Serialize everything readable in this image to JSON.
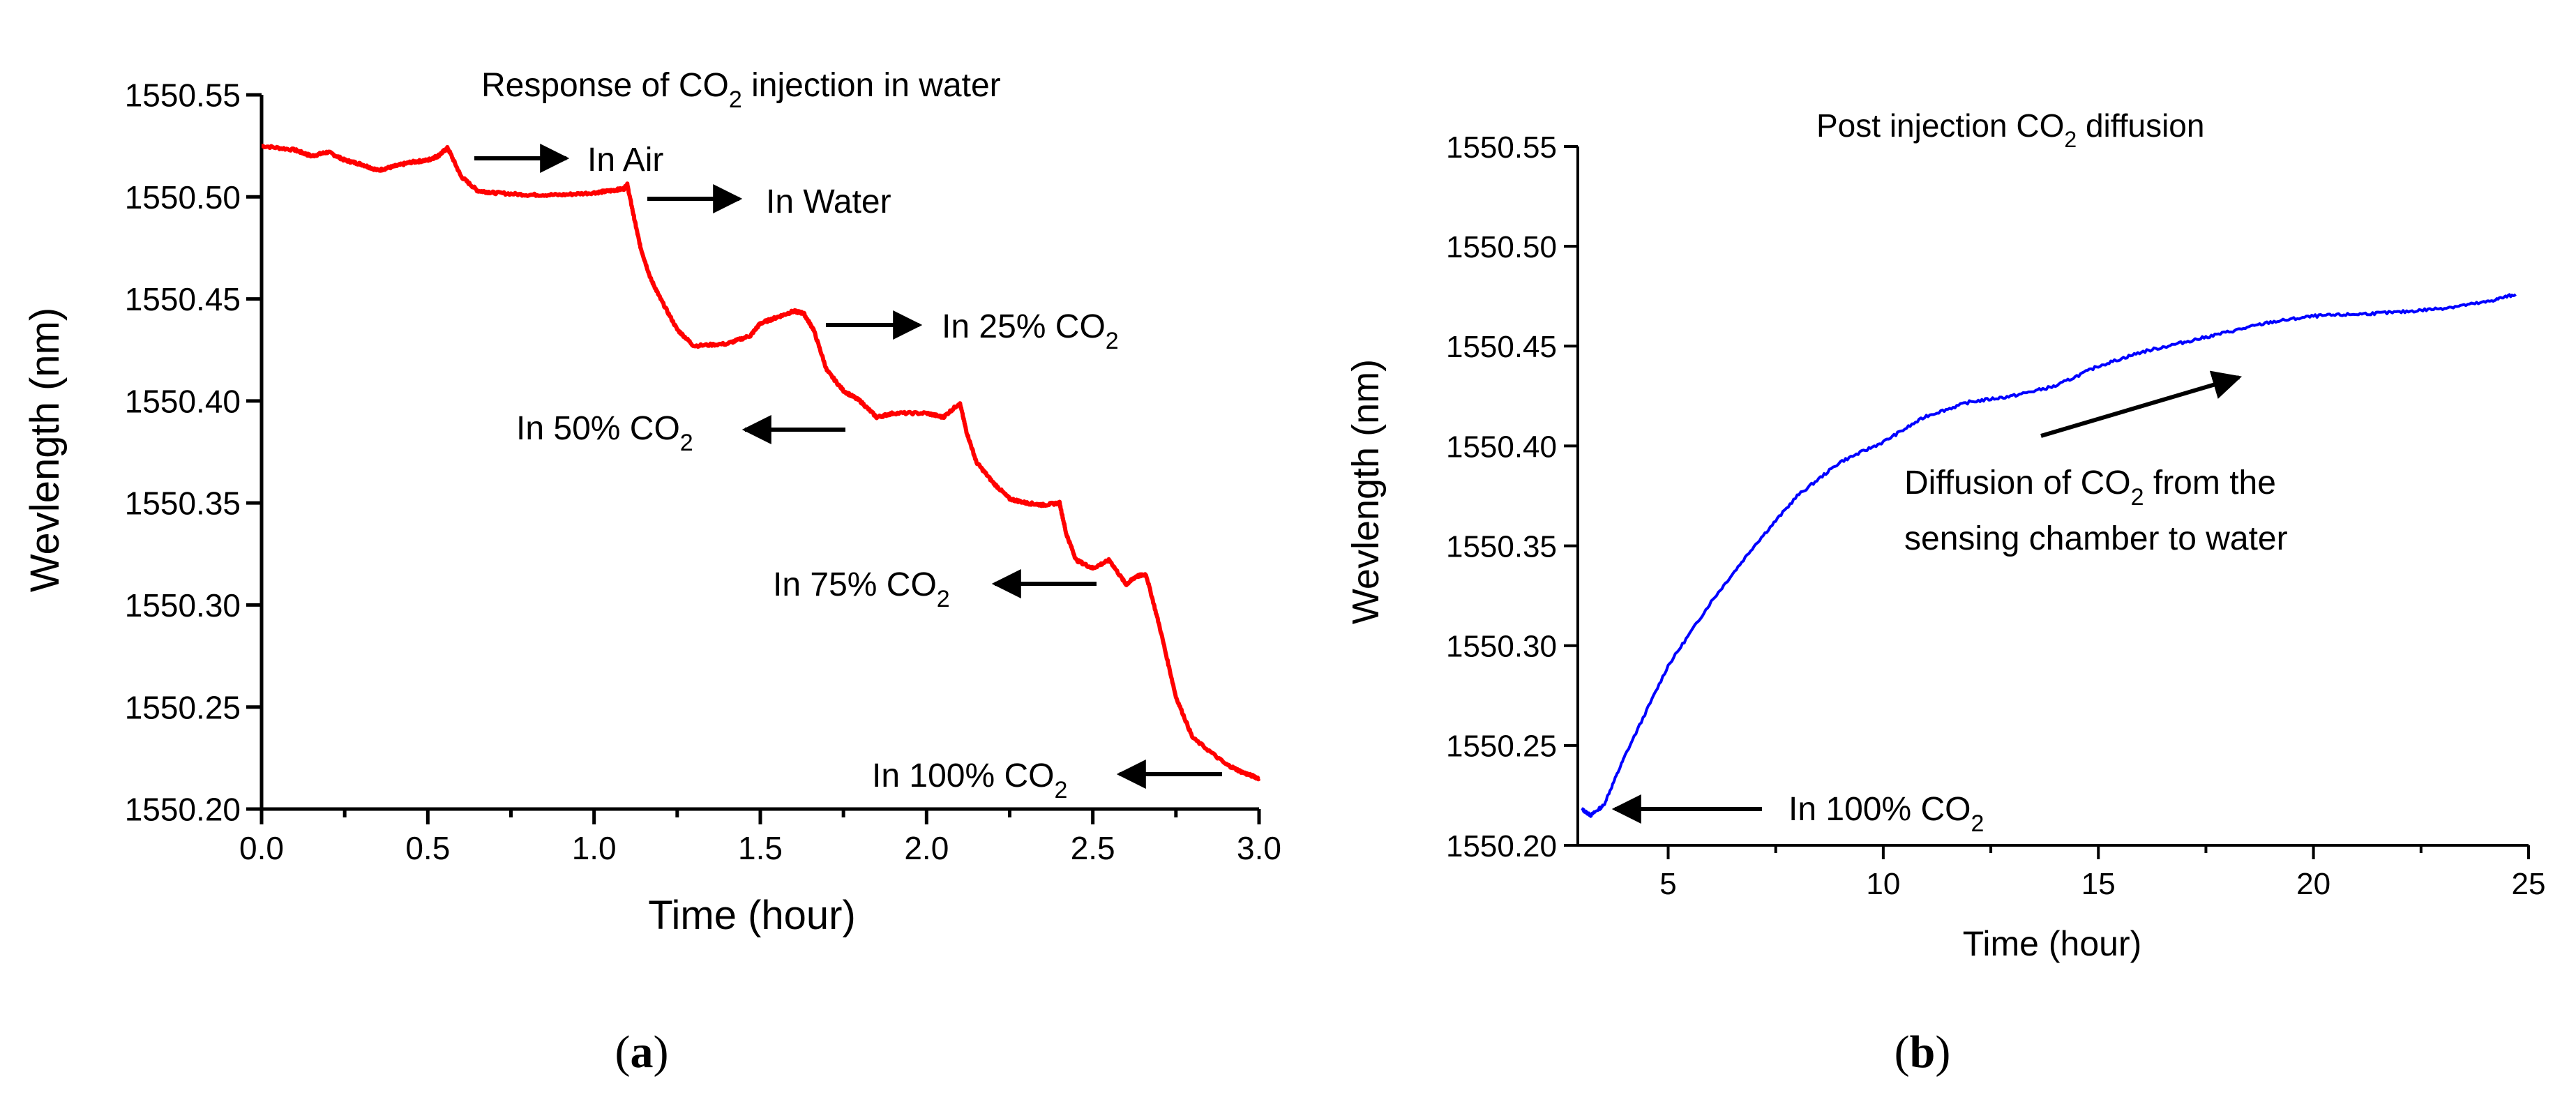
{
  "chart_data": [
    {
      "id": "a",
      "type": "line",
      "title_parts": [
        "Response of CO",
        "2",
        " injection in water"
      ],
      "xlabel": "Time (hour)",
      "ylabel": "Wevlength (nm)",
      "xlim": [
        0,
        3
      ],
      "ylim": [
        1550.2,
        1550.55
      ],
      "xticks": [
        0,
        0.5,
        1,
        1.5,
        2,
        2.5,
        3
      ],
      "xtick_labels": [
        "0.0",
        "0.5",
        "1.0",
        "1.5",
        "2.0",
        "2.5",
        "3.0"
      ],
      "yticks": [
        1550.2,
        1550.25,
        1550.3,
        1550.35,
        1550.4,
        1550.45,
        1550.5,
        1550.55
      ],
      "ytick_labels": [
        "1550.20",
        "1550.25",
        "1550.30",
        "1550.35",
        "1550.40",
        "1550.45",
        "1550.50",
        "1550.55"
      ],
      "series": [
        {
          "name": "Response of CO2 injection in water",
          "color": "#ff0000",
          "x": [
            0,
            0.1,
            0.15,
            0.2,
            0.25,
            0.3,
            0.35,
            0.4,
            0.45,
            0.5,
            0.53,
            0.56,
            0.6,
            0.65,
            0.7,
            0.8,
            0.9,
            1.0,
            1.05,
            1.09,
            1.1,
            1.12,
            1.14,
            1.17,
            1.2,
            1.25,
            1.3,
            1.4,
            1.47,
            1.5,
            1.55,
            1.6,
            1.63,
            1.66,
            1.7,
            1.75,
            1.8,
            1.85,
            1.9,
            2.0,
            2.05,
            2.1,
            2.12,
            2.15,
            2.2,
            2.25,
            2.3,
            2.35,
            2.4,
            2.42,
            2.45,
            2.5,
            2.55,
            2.6,
            2.63,
            2.66,
            2.7,
            2.75,
            2.8,
            2.9,
            2.95,
            3.0
          ],
          "values": [
            1550.525,
            1550.523,
            1550.52,
            1550.522,
            1550.518,
            1550.516,
            1550.513,
            1550.515,
            1550.517,
            1550.518,
            1550.52,
            1550.524,
            1550.51,
            1550.503,
            1550.502,
            1550.501,
            1550.501,
            1550.502,
            1550.503,
            1550.504,
            1550.506,
            1550.49,
            1550.475,
            1550.46,
            1550.45,
            1550.435,
            1550.427,
            1550.428,
            1550.432,
            1550.438,
            1550.441,
            1550.444,
            1550.443,
            1550.435,
            1550.415,
            1550.405,
            1550.4,
            1550.392,
            1550.394,
            1550.394,
            1550.392,
            1550.399,
            1550.385,
            1550.37,
            1550.36,
            1550.352,
            1550.35,
            1550.349,
            1550.35,
            1550.335,
            1550.322,
            1550.318,
            1550.322,
            1550.31,
            1550.314,
            1550.315,
            1550.29,
            1550.255,
            1550.235,
            1550.222,
            1550.218,
            1550.215
          ]
        }
      ],
      "annotations": [
        {
          "parts": [
            "In Air"
          ]
        },
        {
          "parts": [
            "In Water"
          ]
        },
        {
          "parts": [
            "In 25% CO",
            "2"
          ]
        },
        {
          "parts": [
            "In 50% CO",
            "2"
          ]
        },
        {
          "parts": [
            "In 75% CO",
            "2"
          ]
        },
        {
          "parts": [
            "In 100% CO",
            "2"
          ]
        }
      ],
      "caption_parts": [
        "(",
        "a",
        ")"
      ]
    },
    {
      "id": "b",
      "type": "line",
      "title_parts": [
        "Post injection CO",
        "2",
        " diffusion"
      ],
      "xlabel": "Time (hour)",
      "ylabel": "Wevlength (nm)",
      "xlim": [
        2.9,
        25
      ],
      "ylim": [
        1550.2,
        1550.55
      ],
      "xticks": [
        5,
        10,
        15,
        20,
        25
      ],
      "xtick_labels": [
        "5",
        "10",
        "15",
        "20",
        "25"
      ],
      "yticks": [
        1550.2,
        1550.25,
        1550.3,
        1550.35,
        1550.4,
        1550.45,
        1550.5,
        1550.55
      ],
      "ytick_labels": [
        "1550.20",
        "1550.25",
        "1550.30",
        "1550.35",
        "1550.40",
        "1550.45",
        "1550.50",
        "1550.55"
      ],
      "series": [
        {
          "name": "Post injection CO2 diffusion",
          "color": "#0000ff",
          "x": [
            3.0,
            3.2,
            3.5,
            4.0,
            5.0,
            6.0,
            7.0,
            8.0,
            9.0,
            10.0,
            11.0,
            12.0,
            13.0,
            14.0,
            15.0,
            16.0,
            17.0,
            18.0,
            19.0,
            20.0,
            21.0,
            22.0,
            23.0,
            24.0,
            24.7
          ],
          "values": [
            1550.218,
            1550.215,
            1550.22,
            1550.245,
            1550.29,
            1550.322,
            1550.35,
            1550.375,
            1550.392,
            1550.402,
            1550.415,
            1550.422,
            1550.425,
            1550.43,
            1550.44,
            1550.447,
            1550.452,
            1550.457,
            1550.462,
            1550.465,
            1550.466,
            1550.467,
            1550.469,
            1550.472,
            1550.476
          ]
        }
      ],
      "annotations": [
        {
          "parts": [
            "Diffusion of CO",
            "2",
            " from the"
          ]
        },
        {
          "parts": [
            "sensing chamber to water"
          ]
        },
        {
          "parts": [
            "In 100% CO",
            "2"
          ]
        }
      ],
      "caption_parts": [
        "(",
        "b",
        ")"
      ]
    }
  ]
}
